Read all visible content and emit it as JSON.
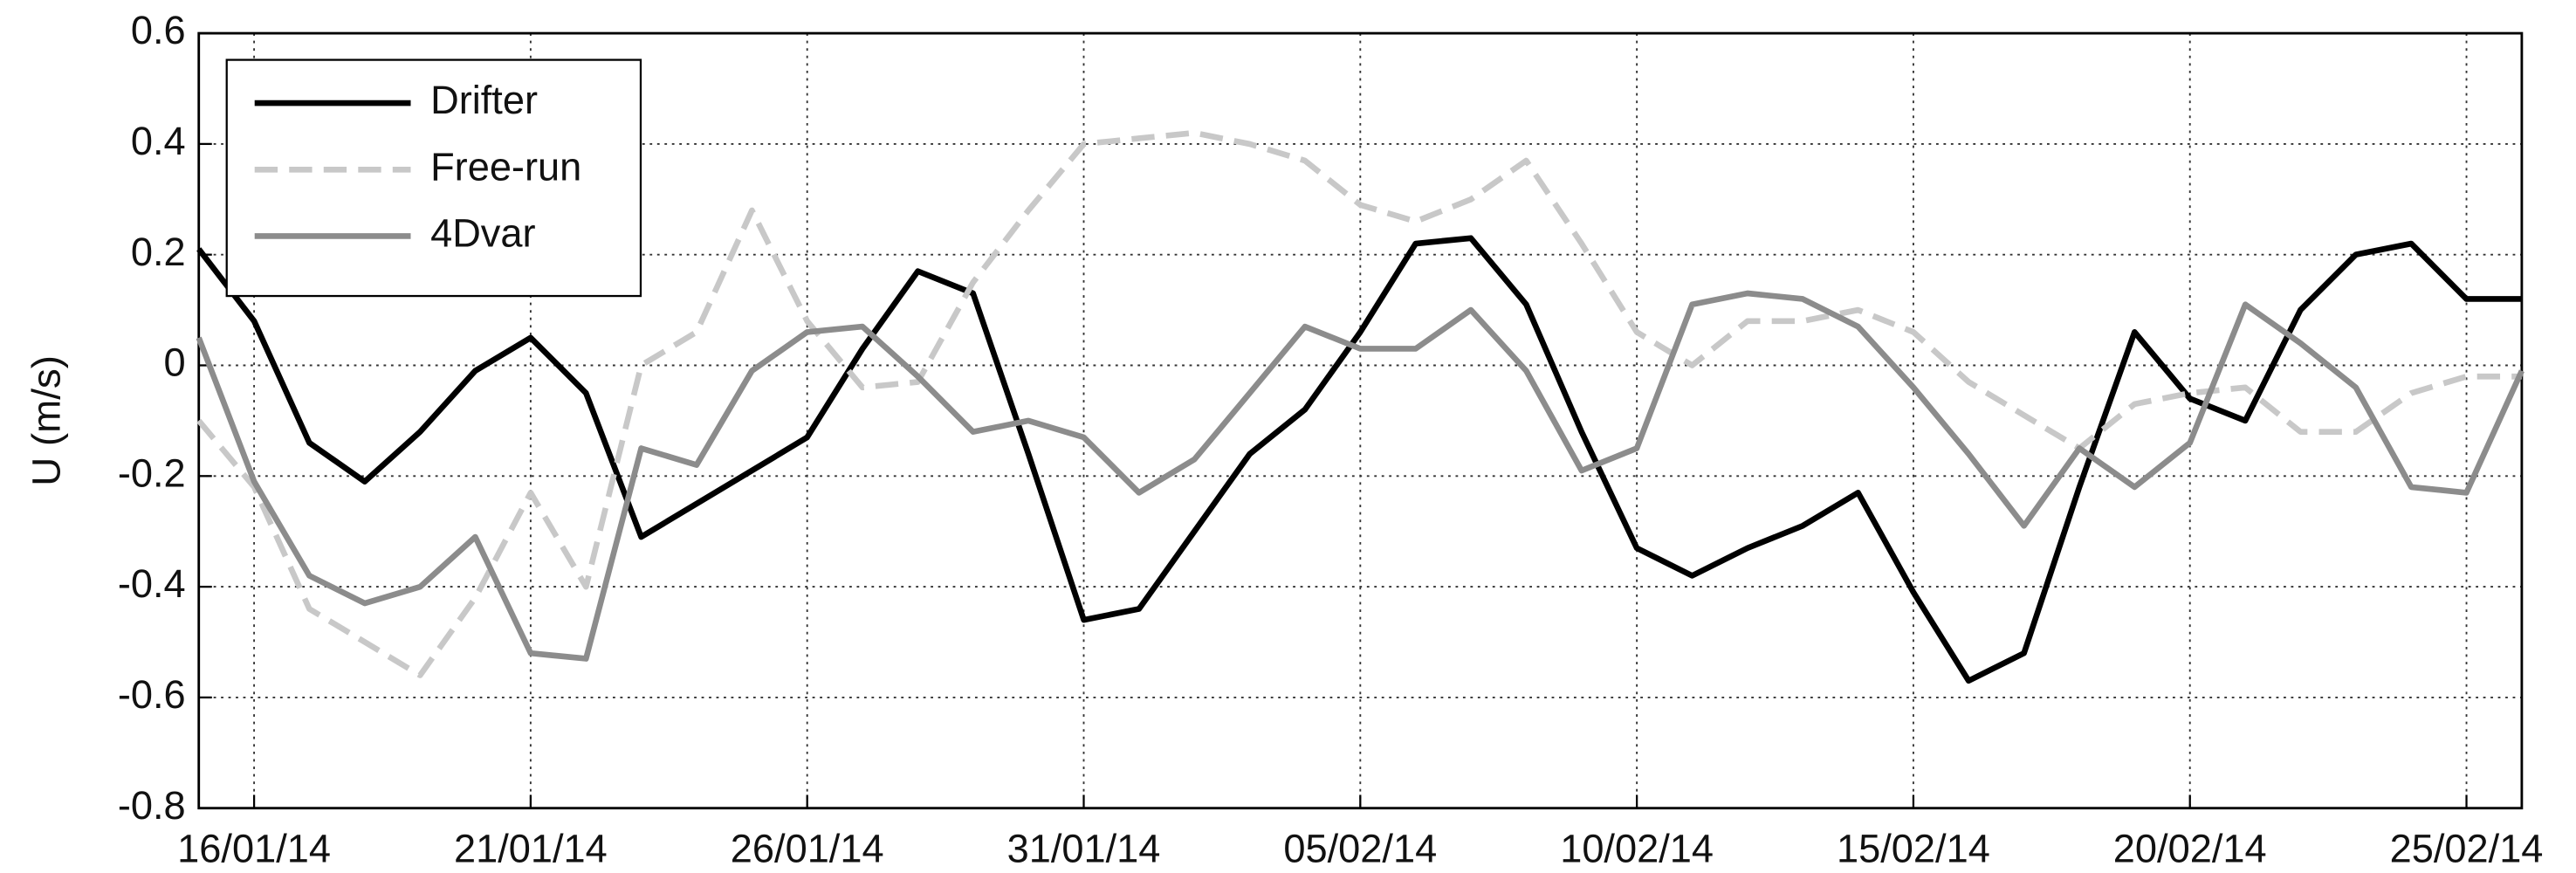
{
  "chart_data": {
    "type": "line",
    "ylabel": "U (m/s)",
    "x": [
      "15/01/14",
      "16/01/14",
      "17/01/14",
      "18/01/14",
      "19/01/14",
      "20/01/14",
      "21/01/14",
      "22/01/14",
      "23/01/14",
      "24/01/14",
      "25/01/14",
      "26/01/14",
      "27/01/14",
      "28/01/14",
      "29/01/14",
      "30/01/14",
      "31/01/14",
      "01/02/14",
      "02/02/14",
      "03/02/14",
      "04/02/14",
      "05/02/14",
      "06/02/14",
      "07/02/14",
      "08/02/14",
      "09/02/14",
      "10/02/14",
      "11/02/14",
      "12/02/14",
      "13/02/14",
      "14/02/14",
      "15/02/14",
      "16/02/14",
      "17/02/14",
      "18/02/14",
      "19/02/14",
      "20/02/14",
      "21/02/14",
      "22/02/14",
      "23/02/14",
      "24/02/14",
      "25/02/14",
      "26/02/14"
    ],
    "xlim": [
      "15/01/14",
      "26/02/14"
    ],
    "xticks": [
      "16/01/14",
      "21/01/14",
      "26/01/14",
      "31/01/14",
      "05/02/14",
      "10/02/14",
      "15/02/14",
      "20/02/14",
      "25/02/14"
    ],
    "ylim": [
      -0.8,
      0.6
    ],
    "yticks": [
      -0.8,
      -0.6,
      -0.4,
      -0.2,
      0,
      0.2,
      0.4,
      0.6
    ],
    "grid": true,
    "legend": "upper left",
    "series": [
      {
        "name": "Drifter",
        "color": "#000000",
        "dash": "solid",
        "values": [
          0.21,
          0.08,
          -0.14,
          -0.21,
          -0.12,
          -0.01,
          0.05,
          -0.05,
          -0.31,
          -0.25,
          -0.19,
          -0.13,
          0.03,
          0.17,
          0.13,
          -0.16,
          -0.46,
          -0.44,
          -0.3,
          -0.16,
          -0.08,
          0.06,
          0.22,
          0.23,
          0.11,
          -0.12,
          -0.33,
          -0.38,
          -0.33,
          -0.29,
          -0.23,
          -0.41,
          -0.57,
          -0.52,
          -0.22,
          0.06,
          -0.06,
          -0.1,
          0.1,
          0.2,
          0.22,
          0.12,
          0.12
        ]
      },
      {
        "name": "Free-run",
        "color": "#c8c8c8",
        "dash": "dashed",
        "values": [
          -0.1,
          -0.22,
          -0.44,
          -0.5,
          -0.56,
          -0.42,
          -0.23,
          -0.4,
          0.0,
          0.06,
          0.28,
          0.08,
          -0.04,
          -0.03,
          0.15,
          0.28,
          0.4,
          0.41,
          0.42,
          0.4,
          0.37,
          0.29,
          0.26,
          0.3,
          0.37,
          0.22,
          0.06,
          0.0,
          0.08,
          0.08,
          0.1,
          0.06,
          -0.03,
          -0.09,
          -0.15,
          -0.07,
          -0.05,
          -0.04,
          -0.12,
          -0.12,
          -0.05,
          -0.02,
          -0.02
        ]
      },
      {
        "name": "4Dvar",
        "color": "#8c8c8c",
        "dash": "solid",
        "values": [
          0.05,
          -0.21,
          -0.38,
          -0.43,
          -0.4,
          -0.31,
          -0.52,
          -0.53,
          -0.15,
          -0.18,
          -0.01,
          0.06,
          0.07,
          -0.02,
          -0.12,
          -0.1,
          -0.13,
          -0.23,
          -0.17,
          -0.05,
          0.07,
          0.03,
          0.03,
          0.1,
          -0.01,
          -0.19,
          -0.15,
          0.11,
          0.13,
          0.12,
          0.07,
          -0.04,
          -0.16,
          -0.29,
          -0.15,
          -0.22,
          -0.14,
          0.11,
          0.04,
          -0.04,
          -0.22,
          -0.23,
          -0.01
        ]
      }
    ]
  }
}
